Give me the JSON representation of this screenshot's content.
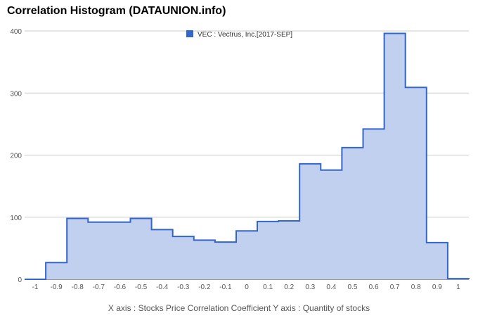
{
  "title": "Correlation Histogram (DATAUNION.info)",
  "chart_data": {
    "type": "area",
    "title": "Correlation Histogram (DATAUNION.info)",
    "legend": {
      "label": "VEC : Vectrus, Inc.[2017-SEP]",
      "position": "top"
    },
    "xlabel": "X axis : Stocks Price Correlation Coefficient   Y axis : Quantity of stocks",
    "ylabel": "",
    "xlim": [
      -1.05,
      1.05
    ],
    "ylim": [
      0,
      400
    ],
    "grid": true,
    "x_ticks": [
      "-1",
      "-0.9",
      "-0.8",
      "-0.7",
      "-0.6",
      "-0.5",
      "-0.4",
      "-0.3",
      "-0.2",
      "-0.1",
      "0",
      "0.1",
      "0.2",
      "0.3",
      "0.4",
      "0.5",
      "0.6",
      "0.7",
      "0.8",
      "0.9",
      "1"
    ],
    "y_ticks": [
      0,
      100,
      200,
      300,
      400
    ],
    "x": [
      -1.0,
      -0.9,
      -0.8,
      -0.7,
      -0.6,
      -0.5,
      -0.4,
      -0.3,
      -0.2,
      -0.1,
      0.0,
      0.1,
      0.2,
      0.3,
      0.4,
      0.5,
      0.6,
      0.7,
      0.8,
      0.9,
      1.0
    ],
    "series": [
      {
        "name": "VEC : Vectrus, Inc.[2017-SEP]",
        "color": "#3366cc",
        "fill": "#c2d0f0",
        "values": [
          0,
          27,
          98,
          92,
          92,
          98,
          80,
          69,
          63,
          60,
          78,
          93,
          94,
          186,
          176,
          212,
          242,
          396,
          309,
          59,
          1
        ]
      }
    ]
  }
}
